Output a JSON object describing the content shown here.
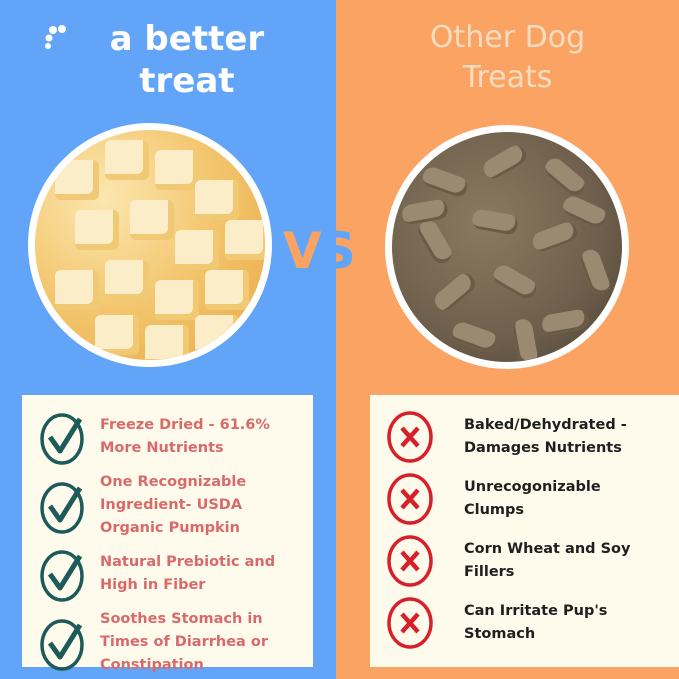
{
  "colors": {
    "blue": "#62a5f8",
    "orange": "#fba362",
    "pink": "#d96a6a",
    "teal": "#1d5a5a",
    "red": "#d8202a"
  },
  "left": {
    "title": "a better treat",
    "icon": "paw-icon",
    "items": [
      {
        "icon": "check-circle-icon",
        "text": "Freeze Dried - 61.6% More Nutrients"
      },
      {
        "icon": "check-circle-icon",
        "text": "One Recognizable Ingredient- USDA Organic Pumpkin"
      },
      {
        "icon": "check-circle-icon",
        "text": "Natural Prebiotic and High in Fiber"
      },
      {
        "icon": "check-circle-icon",
        "text": "Soothes Stomach in Times of Diarrhea or Constipation"
      }
    ]
  },
  "vs": {
    "v": "V",
    "s": "S"
  },
  "right": {
    "title_line1": "Other Dog",
    "title_line2": "Treats",
    "items": [
      {
        "icon": "x-circle-icon",
        "text": "Baked/Dehydrated - Damages Nutrients"
      },
      {
        "icon": "x-circle-icon",
        "text": "Unrecogonizable Clumps"
      },
      {
        "icon": "x-circle-icon",
        "text": "Corn Wheat and Soy Fillers"
      },
      {
        "icon": "x-circle-icon",
        "text": "Can Irritate Pup's Stomach"
      }
    ]
  }
}
